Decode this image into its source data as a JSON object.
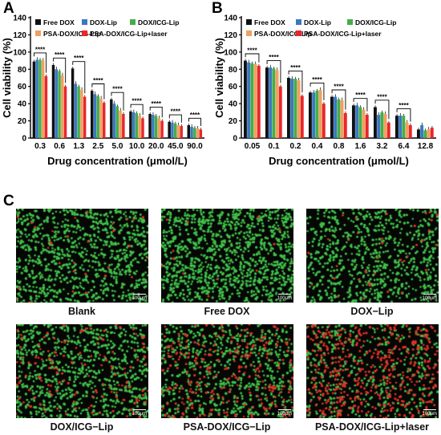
{
  "panel_labels": {
    "a": "A",
    "b": "B",
    "c": "C"
  },
  "colors": {
    "Free DOX": "#111111",
    "DOX-Lip": "#3a78c2",
    "DOX/ICG-Lip": "#45ad4a",
    "PSA-DOX/ICG-Lip": "#f0a060",
    "PSA-DOX/ICG-Lip+laser": "#e8262a",
    "live": "#41c34a",
    "dead": "#e53126"
  },
  "chart_data": [
    {
      "type": "bar",
      "panel": "A",
      "xlabel": "Drug concentration (μmol/L)",
      "ylabel": "Cell viability (%)",
      "ylim": [
        0,
        140
      ],
      "yticks": [
        "0",
        "20",
        "40",
        "60",
        "80",
        "100",
        "120",
        "140"
      ],
      "categories": [
        "0.3",
        "0.6",
        "1.3",
        "2.5",
        "5.0",
        "10.0",
        "20.0",
        "45.0",
        "90.0"
      ],
      "series": [
        {
          "name": "Free DOX",
          "values": [
            89,
            85,
            81,
            55,
            45,
            31,
            28,
            19,
            15
          ]
        },
        {
          "name": "DOX-Lip",
          "values": [
            91,
            80,
            63,
            51,
            40,
            30,
            27,
            18,
            13
          ]
        },
        {
          "name": "DOX/ICG-Lip",
          "values": [
            91,
            78,
            60,
            49,
            37,
            29,
            26,
            17,
            12
          ]
        },
        {
          "name": "PSA-DOX/ICG-Lip",
          "values": [
            90,
            73,
            56,
            46,
            32,
            26,
            23,
            15,
            11
          ]
        },
        {
          "name": "PSA-DOX/ICG-Lip+laser",
          "values": [
            72,
            60,
            48,
            41,
            28,
            23,
            20,
            14,
            10
          ]
        }
      ],
      "significance": [
        "****",
        "****",
        "****",
        "****",
        "****",
        "****",
        "****",
        "****",
        "****"
      ],
      "legend": "top"
    },
    {
      "type": "bar",
      "panel": "B",
      "xlabel": "Drug concentration (μmol/L)",
      "ylabel": "Cell viability (%)",
      "ylim": [
        0,
        140
      ],
      "yticks": [
        "0",
        "20",
        "40",
        "60",
        "80",
        "100",
        "120",
        "140"
      ],
      "categories": [
        "0.05",
        "0.1",
        "0.2",
        "0.4",
        "0.8",
        "1.6",
        "3.2",
        "6.4",
        "12.8"
      ],
      "series": [
        {
          "name": "Free DOX",
          "values": [
            90,
            82,
            70,
            53,
            48,
            38,
            36,
            26,
            10
          ]
        },
        {
          "name": "DOX-Lip",
          "values": [
            88,
            82,
            69,
            53,
            48,
            38,
            27,
            26,
            15
          ]
        },
        {
          "name": "DOX/ICG-Lip",
          "values": [
            87,
            81,
            69,
            55,
            45,
            36,
            30,
            26,
            9
          ]
        },
        {
          "name": "PSA-DOX/ICG-Lip",
          "values": [
            86,
            79,
            67,
            56,
            44,
            33,
            28,
            18,
            10
          ]
        },
        {
          "name": "PSA-DOX/ICG-Lip+laser",
          "values": [
            84,
            60,
            49,
            40,
            29,
            27,
            18,
            15,
            12
          ]
        }
      ],
      "significance": [
        "****",
        "****",
        "****",
        "****",
        "****",
        "****",
        "****",
        "****",
        ""
      ],
      "legend": "top"
    }
  ],
  "micrographs": [
    {
      "caption": "Blank",
      "scale": "100μm",
      "live": 900,
      "dead": 30
    },
    {
      "caption": "Free DOX",
      "scale": "100μm",
      "live": 1100,
      "dead": 12
    },
    {
      "caption": "DOX−Lip",
      "scale": "100μm",
      "live": 750,
      "dead": 35
    },
    {
      "caption": "DOX/ICG−Lip",
      "scale": "100μm",
      "live": 800,
      "dead": 140
    },
    {
      "caption": "PSA-DOX/ICG−Lip",
      "scale": "100μm",
      "live": 650,
      "dead": 280
    },
    {
      "caption": "PSA-DOX/ICG-Lip+laser",
      "scale": "100μm",
      "live": 420,
      "dead": 520
    }
  ]
}
